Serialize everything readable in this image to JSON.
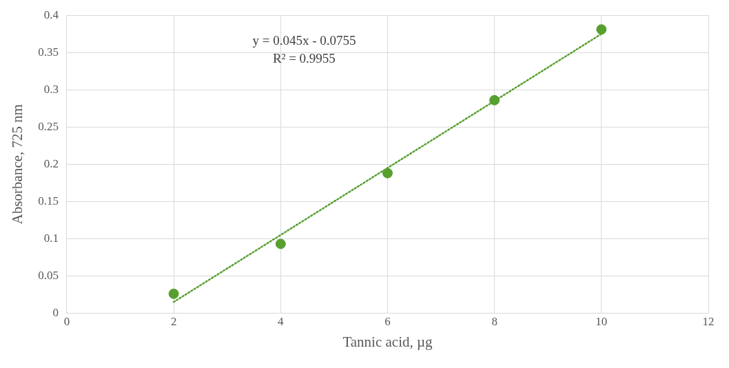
{
  "chart_data": {
    "type": "scatter",
    "xlabel": "Tannic acid, µg",
    "ylabel": "Absorbance, 725 nm",
    "x": [
      2,
      4,
      6,
      8,
      10
    ],
    "series": [
      {
        "type": "scatter",
        "color": "#57a02f",
        "values": [
          0.026,
          0.093,
          0.188,
          0.286,
          0.381
        ],
        "marker": "circle"
      },
      {
        "type": "line",
        "color": "#57a02f",
        "x": [
          2,
          10
        ],
        "values": [
          0.015,
          0.375
        ],
        "line_style": "dotted",
        "marker": "none"
      }
    ],
    "annotations": [
      "y = 0.045x - 0.0755",
      "R² = 0.9955"
    ],
    "xlim": [
      0,
      12
    ],
    "xticks": [
      0,
      2,
      4,
      6,
      8,
      10,
      12
    ],
    "ylim": [
      0,
      0.4
    ],
    "yticks": [
      0,
      0.05,
      0.1,
      0.15,
      0.2,
      0.25,
      0.3,
      0.35,
      0.4
    ],
    "grid": true,
    "legend": false
  }
}
